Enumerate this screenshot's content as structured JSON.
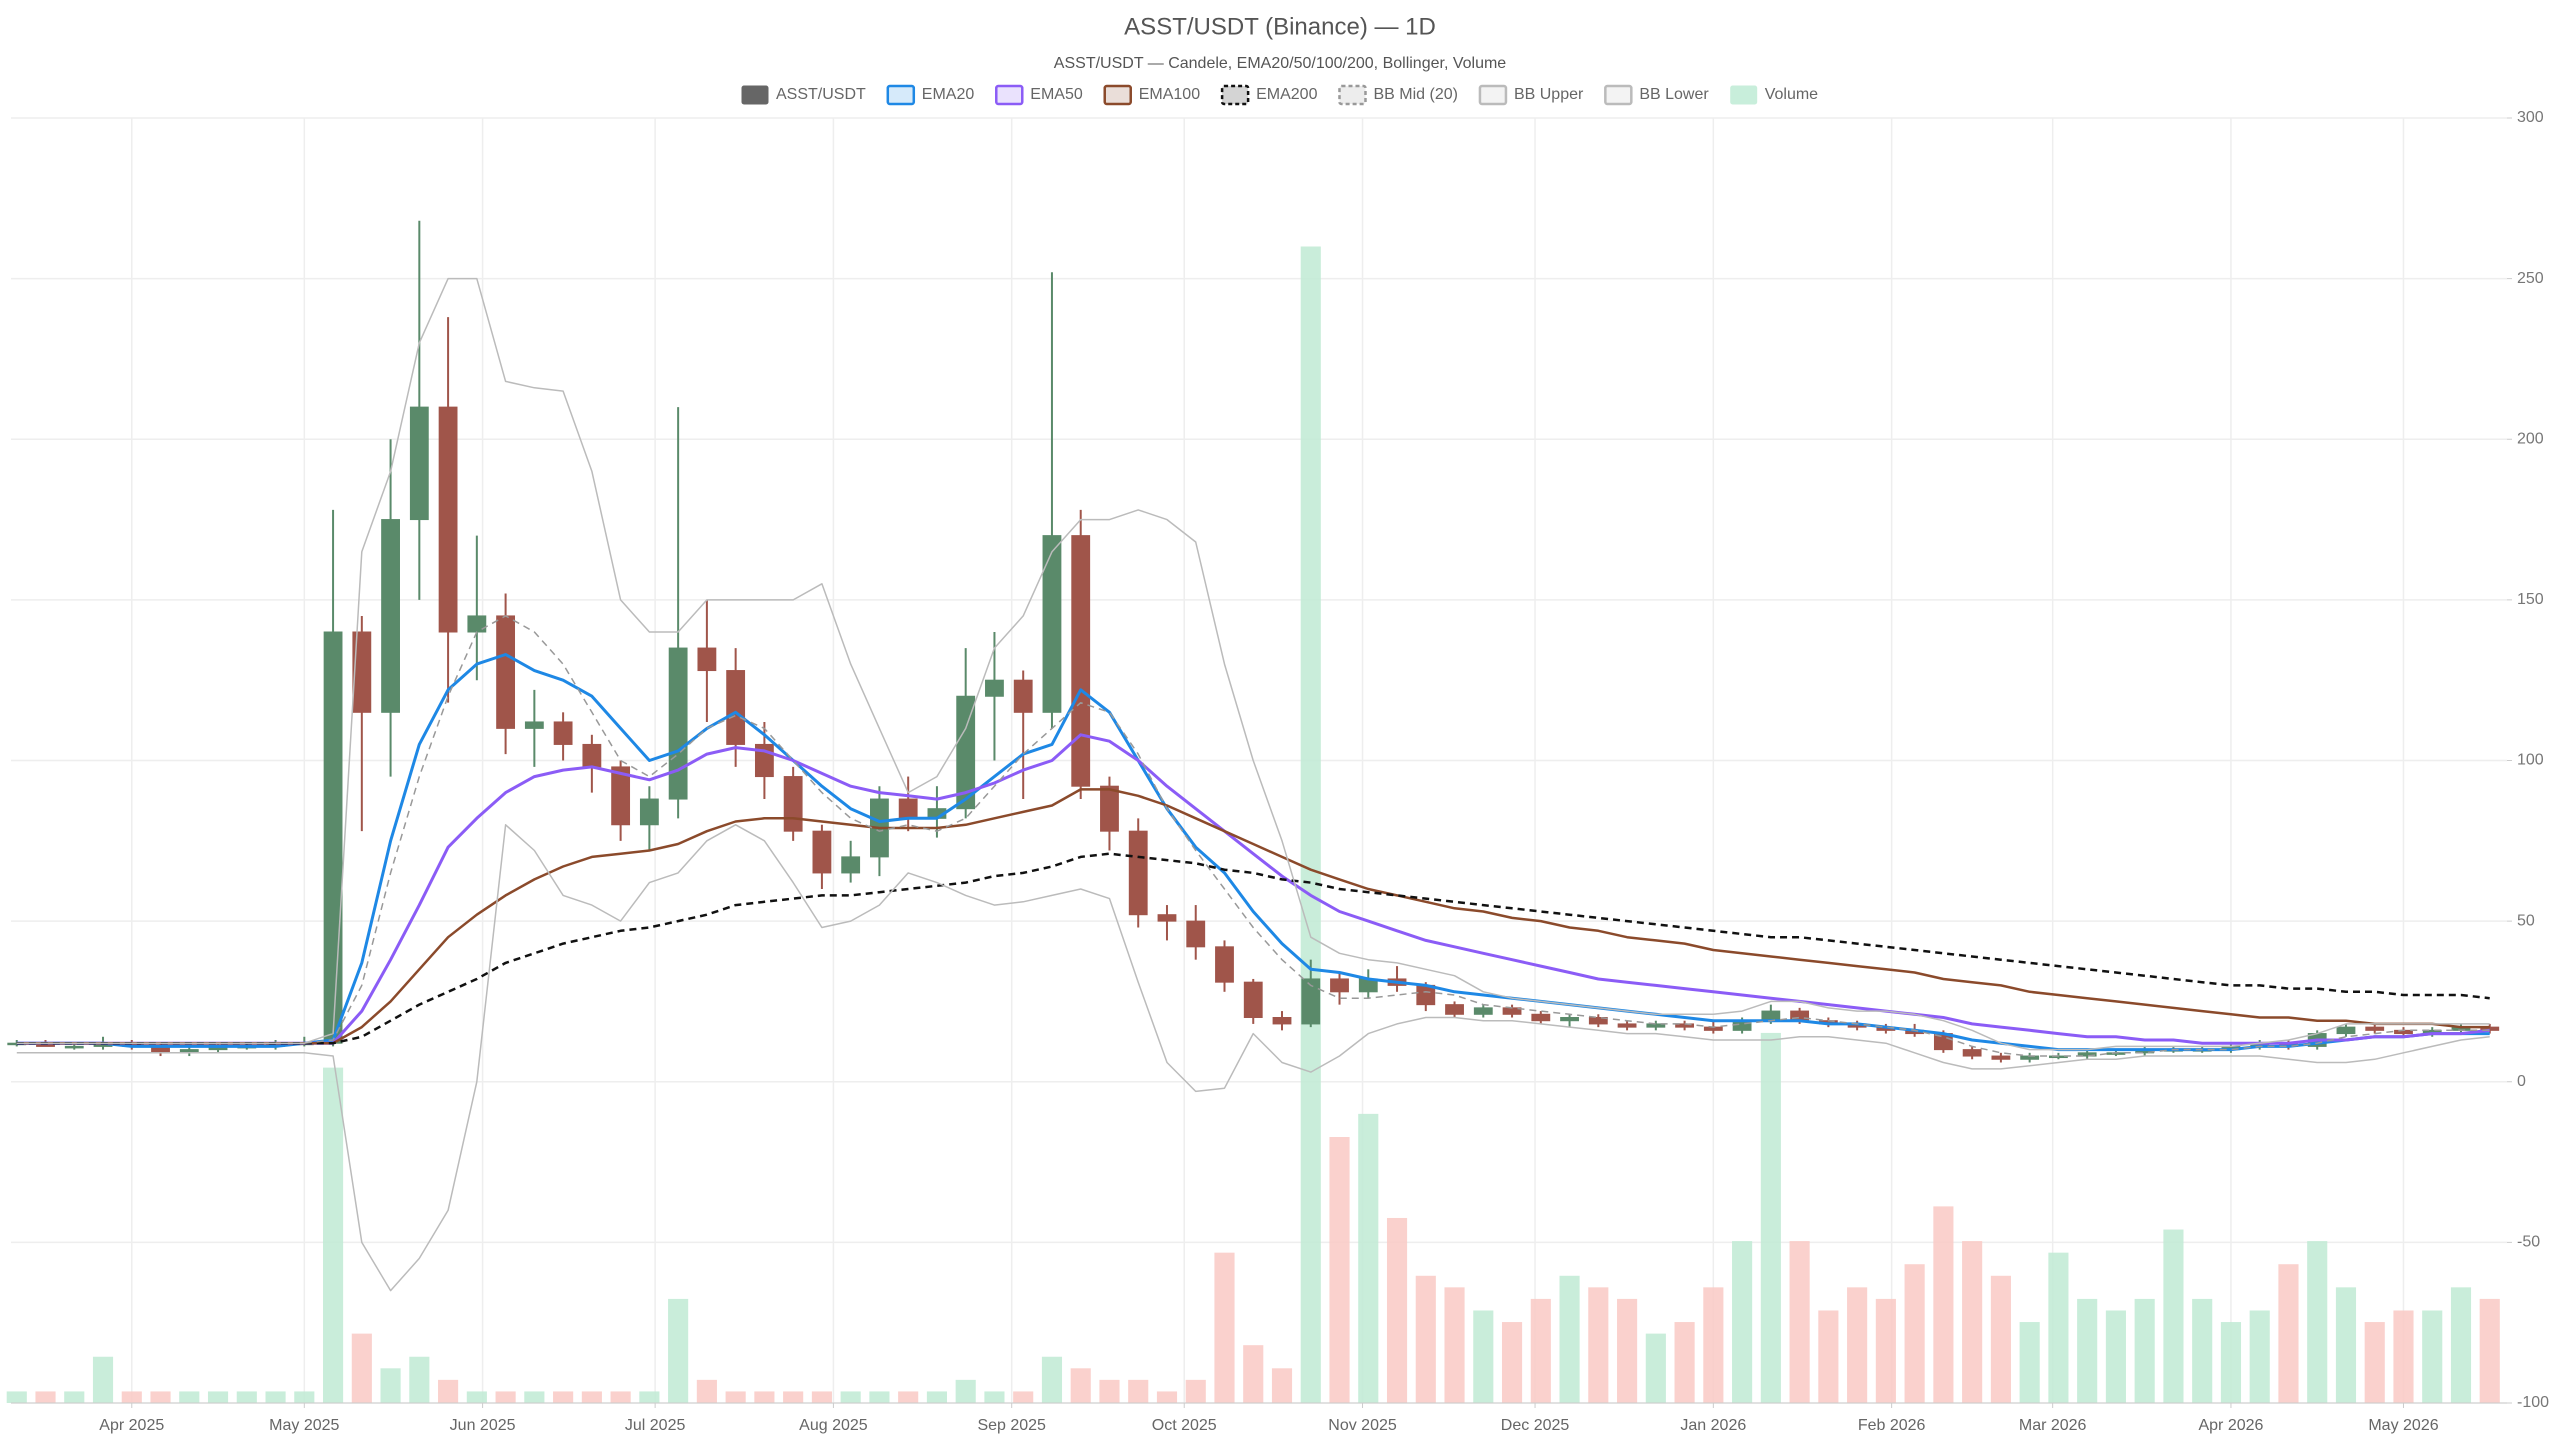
{
  "chart_data": {
    "type": "candlestick",
    "title": "ASST/USDT (Binance) — 1D",
    "subtitle": "ASST/USDT — Candele, EMA20/50/100/200, Bollinger, Volume",
    "legend": "top",
    "grid": true,
    "xlim": [
      "2025-03-11",
      "2026-05-19"
    ],
    "xticks": [
      {
        "value": "2025-04-01",
        "label": "Apr 2025"
      },
      {
        "value": "2025-05-01",
        "label": "May 2025"
      },
      {
        "value": "2025-06-01",
        "label": "Jun 2025"
      },
      {
        "value": "2025-07-01",
        "label": "Jul 2025"
      },
      {
        "value": "2025-08-01",
        "label": "Aug 2025"
      },
      {
        "value": "2025-09-01",
        "label": "Sep 2025"
      },
      {
        "value": "2025-10-01",
        "label": "Oct 2025"
      },
      {
        "value": "2025-11-01",
        "label": "Nov 2025"
      },
      {
        "value": "2025-12-01",
        "label": "Dec 2025"
      },
      {
        "value": "2026-01-01",
        "label": "Jan 2026"
      },
      {
        "value": "2026-02-01",
        "label": "Feb 2026"
      },
      {
        "value": "2026-03-01",
        "label": "Mar 2026"
      },
      {
        "value": "2026-04-01",
        "label": "Apr 2026"
      },
      {
        "value": "2026-05-01",
        "label": "May 2026"
      }
    ],
    "ylim": [
      -100,
      300
    ],
    "yticks": [
      -100,
      -50,
      0,
      50,
      100,
      150,
      200,
      250,
      300
    ],
    "x": [
      "2025-03-12",
      "2025-03-17",
      "2025-03-22",
      "2025-03-27",
      "2025-04-01",
      "2025-04-06",
      "2025-04-11",
      "2025-04-16",
      "2025-04-21",
      "2025-04-26",
      "2025-05-01",
      "2025-05-06",
      "2025-05-11",
      "2025-05-16",
      "2025-05-21",
      "2025-05-26",
      "2025-05-31",
      "2025-06-05",
      "2025-06-10",
      "2025-06-15",
      "2025-06-20",
      "2025-06-25",
      "2025-06-30",
      "2025-07-05",
      "2025-07-10",
      "2025-07-15",
      "2025-07-20",
      "2025-07-25",
      "2025-07-30",
      "2025-08-04",
      "2025-08-09",
      "2025-08-14",
      "2025-08-19",
      "2025-08-24",
      "2025-08-29",
      "2025-09-03",
      "2025-09-08",
      "2025-09-13",
      "2025-09-18",
      "2025-09-23",
      "2025-09-28",
      "2025-10-03",
      "2025-10-08",
      "2025-10-13",
      "2025-10-18",
      "2025-10-23",
      "2025-10-28",
      "2025-11-02",
      "2025-11-07",
      "2025-11-12",
      "2025-11-17",
      "2025-11-22",
      "2025-11-27",
      "2025-12-02",
      "2025-12-07",
      "2025-12-12",
      "2025-12-17",
      "2025-12-22",
      "2025-12-27",
      "2026-01-01",
      "2026-01-06",
      "2026-01-11",
      "2026-01-16",
      "2026-01-21",
      "2026-01-26",
      "2026-01-31",
      "2026-02-05",
      "2026-02-10",
      "2026-02-15",
      "2026-02-20",
      "2026-02-25",
      "2026-03-02",
      "2026-03-07",
      "2026-03-12",
      "2026-03-17",
      "2026-03-22",
      "2026-03-27",
      "2026-04-01",
      "2026-04-06",
      "2026-04-11",
      "2026-04-16",
      "2026-04-21",
      "2026-04-26",
      "2026-05-01",
      "2026-05-06",
      "2026-05-11",
      "2026-05-16"
    ],
    "series": [
      {
        "name": "ASST/USDT",
        "type": "candlestick",
        "color": "#666666",
        "up_color": "#5a8a6a",
        "down_color": "#a0554a",
        "open": [
          12,
          12,
          11,
          11,
          12,
          11,
          9,
          10,
          11,
          11,
          12,
          12,
          140,
          115,
          175,
          210,
          140,
          145,
          110,
          112,
          105,
          98,
          80,
          88,
          135,
          128,
          105,
          95,
          78,
          65,
          70,
          88,
          82,
          85,
          120,
          125,
          115,
          170,
          92,
          78,
          52,
          50,
          42,
          31,
          20,
          18,
          32,
          28,
          32,
          30,
          24,
          21,
          23,
          21,
          19,
          20,
          18,
          17,
          18,
          17,
          16,
          19,
          22,
          19,
          18,
          17,
          16,
          15,
          10,
          8,
          7,
          8,
          8,
          9,
          9,
          10,
          10,
          10,
          11,
          12,
          11,
          15,
          17,
          16,
          15,
          16,
          17
        ],
        "high": [
          13,
          13,
          12,
          14,
          13,
          12,
          11,
          12,
          12,
          13,
          14,
          178,
          145,
          200,
          268,
          238,
          170,
          152,
          122,
          115,
          108,
          100,
          92,
          210,
          150,
          135,
          112,
          98,
          80,
          75,
          92,
          95,
          92,
          135,
          140,
          128,
          252,
          178,
          95,
          82,
          55,
          55,
          44,
          32,
          22,
          38,
          34,
          35,
          36,
          31,
          25,
          24,
          24,
          22,
          21,
          21,
          19,
          19,
          19,
          19,
          20,
          24,
          23,
          20,
          19,
          18,
          18,
          16,
          11,
          9,
          9,
          9,
          10,
          10,
          11,
          11,
          11,
          12,
          13,
          13,
          16,
          18,
          18,
          17,
          17,
          18,
          18
        ],
        "low": [
          11,
          11,
          10,
          10,
          10,
          8,
          8,
          9,
          10,
          10,
          11,
          11,
          78,
          95,
          150,
          118,
          125,
          102,
          98,
          100,
          90,
          75,
          72,
          82,
          112,
          98,
          88,
          75,
          60,
          62,
          64,
          78,
          76,
          82,
          100,
          88,
          110,
          88,
          72,
          48,
          44,
          38,
          28,
          18,
          16,
          17,
          24,
          26,
          28,
          22,
          20,
          20,
          20,
          18,
          17,
          17,
          16,
          16,
          16,
          15,
          15,
          18,
          18,
          17,
          16,
          15,
          14,
          9,
          7,
          6,
          6,
          7,
          7,
          8,
          8,
          9,
          9,
          9,
          10,
          10,
          10,
          14,
          15,
          14,
          14,
          15,
          15
        ],
        "close": [
          12,
          11,
          11,
          12,
          11,
          9,
          10,
          11,
          11,
          12,
          12,
          140,
          115,
          175,
          210,
          140,
          145,
          110,
          112,
          105,
          98,
          80,
          88,
          135,
          128,
          105,
          95,
          78,
          65,
          70,
          88,
          82,
          85,
          120,
          125,
          115,
          170,
          92,
          78,
          52,
          50,
          42,
          31,
          20,
          18,
          32,
          28,
          32,
          30,
          24,
          21,
          23,
          21,
          19,
          20,
          18,
          17,
          18,
          17,
          16,
          19,
          22,
          19,
          18,
          17,
          16,
          15,
          10,
          8,
          7,
          8,
          8,
          9,
          9,
          10,
          10,
          10,
          11,
          12,
          11,
          15,
          17,
          16,
          15,
          16,
          17,
          16
        ]
      },
      {
        "name": "EMA20",
        "type": "line",
        "color": "#1e88e5",
        "line_width": 3,
        "values": [
          12,
          12,
          12,
          12,
          11,
          11,
          11,
          11,
          11,
          11,
          12,
          13,
          37,
          75,
          105,
          122,
          130,
          133,
          128,
          125,
          120,
          110,
          100,
          103,
          110,
          115,
          108,
          100,
          92,
          85,
          81,
          82,
          82,
          88,
          95,
          102,
          105,
          122,
          115,
          100,
          85,
          73,
          65,
          53,
          43,
          35,
          34,
          32,
          31,
          30,
          28,
          27,
          26,
          25,
          24,
          23,
          22,
          21,
          20,
          19,
          19,
          19,
          19,
          18,
          18,
          17,
          16,
          15,
          13,
          12,
          11,
          10,
          10,
          10,
          10,
          10,
          10,
          10,
          11,
          11,
          12,
          13,
          14,
          14,
          15,
          15,
          15
        ]
      },
      {
        "name": "EMA50",
        "type": "line",
        "color": "#8b5cf6",
        "line_width": 3,
        "values": [
          12,
          12,
          12,
          12,
          12,
          12,
          12,
          12,
          12,
          12,
          12,
          12,
          22,
          38,
          55,
          73,
          82,
          90,
          95,
          97,
          98,
          96,
          94,
          97,
          102,
          104,
          103,
          100,
          96,
          92,
          90,
          89,
          88,
          90,
          93,
          97,
          100,
          108,
          106,
          100,
          92,
          85,
          78,
          71,
          64,
          58,
          53,
          50,
          47,
          44,
          42,
          40,
          38,
          36,
          34,
          32,
          31,
          30,
          29,
          28,
          27,
          26,
          25,
          24,
          23,
          22,
          21,
          20,
          18,
          17,
          16,
          15,
          14,
          14,
          13,
          13,
          12,
          12,
          12,
          12,
          13,
          13,
          14,
          14,
          15,
          15,
          16
        ]
      },
      {
        "name": "EMA100",
        "type": "line",
        "color": "#8b4a2b",
        "line_width": 2.5,
        "values": [
          12,
          12,
          12,
          12,
          12,
          12,
          12,
          12,
          12,
          12,
          12,
          12,
          17,
          25,
          35,
          45,
          52,
          58,
          63,
          67,
          70,
          71,
          72,
          74,
          78,
          81,
          82,
          82,
          81,
          80,
          79,
          79,
          79,
          80,
          82,
          84,
          86,
          91,
          91,
          89,
          86,
          82,
          78,
          74,
          70,
          66,
          63,
          60,
          58,
          56,
          54,
          53,
          51,
          50,
          48,
          47,
          45,
          44,
          43,
          41,
          40,
          39,
          38,
          37,
          36,
          35,
          34,
          32,
          31,
          30,
          28,
          27,
          26,
          25,
          24,
          23,
          22,
          21,
          20,
          20,
          19,
          19,
          18,
          18,
          18,
          17,
          17
        ]
      },
      {
        "name": "EMA200",
        "type": "line",
        "color": "#111111",
        "line_width": 2.5,
        "dash": true,
        "values": [
          12,
          12,
          12,
          12,
          12,
          12,
          12,
          12,
          12,
          12,
          12,
          12,
          14,
          19,
          24,
          28,
          32,
          37,
          40,
          43,
          45,
          47,
          48,
          50,
          52,
          55,
          56,
          57,
          58,
          58,
          59,
          60,
          61,
          62,
          64,
          65,
          67,
          70,
          71,
          70,
          69,
          68,
          66,
          65,
          63,
          62,
          60,
          59,
          58,
          57,
          56,
          55,
          54,
          53,
          52,
          51,
          50,
          49,
          48,
          47,
          46,
          45,
          45,
          44,
          43,
          42,
          41,
          40,
          39,
          38,
          37,
          36,
          35,
          34,
          33,
          32,
          31,
          30,
          30,
          29,
          29,
          28,
          28,
          27,
          27,
          27,
          26
        ]
      },
      {
        "name": "BB Mid (20)",
        "type": "line",
        "color": "#999999",
        "line_width": 1.5,
        "dash": true,
        "values": [
          12,
          12,
          12,
          12,
          12,
          12,
          12,
          12,
          12,
          12,
          12,
          13,
          30,
          65,
          95,
          120,
          140,
          145,
          140,
          130,
          115,
          100,
          95,
          102,
          110,
          114,
          110,
          100,
          90,
          82,
          78,
          80,
          78,
          82,
          92,
          102,
          110,
          118,
          115,
          102,
          85,
          72,
          60,
          48,
          38,
          30,
          26,
          26,
          27,
          28,
          27,
          24,
          23,
          22,
          21,
          20,
          19,
          18,
          18,
          17,
          18,
          19,
          20,
          19,
          18,
          17,
          16,
          14,
          11,
          9,
          8,
          8,
          8,
          9,
          9,
          10,
          10,
          10,
          11,
          11,
          12,
          14,
          15,
          16,
          16,
          16,
          16
        ]
      },
      {
        "name": "BB Upper",
        "type": "line",
        "color": "#bbbbbb",
        "line_width": 1.5,
        "values": [
          12,
          12,
          12,
          12,
          12,
          12,
          12,
          12,
          12,
          12,
          12,
          15,
          165,
          190,
          230,
          250,
          250,
          218,
          216,
          215,
          190,
          150,
          140,
          140,
          150,
          150,
          150,
          150,
          155,
          130,
          110,
          90,
          95,
          110,
          135,
          145,
          165,
          175,
          175,
          178,
          175,
          168,
          130,
          100,
          75,
          45,
          40,
          38,
          37,
          35,
          33,
          28,
          26,
          25,
          24,
          23,
          22,
          21,
          21,
          21,
          22,
          25,
          25,
          23,
          22,
          22,
          21,
          19,
          16,
          12,
          10,
          10,
          10,
          11,
          11,
          11,
          11,
          11,
          12,
          13,
          15,
          18,
          18,
          18,
          18,
          18,
          18
        ]
      },
      {
        "name": "BB Lower",
        "type": "line",
        "color": "#bbbbbb",
        "line_width": 1.5,
        "values": [
          9,
          9,
          9,
          9,
          9,
          9,
          9,
          9,
          9,
          9,
          9,
          8,
          -50,
          -65,
          -55,
          -40,
          0,
          80,
          72,
          58,
          55,
          50,
          62,
          65,
          75,
          80,
          75,
          62,
          48,
          50,
          55,
          65,
          62,
          58,
          55,
          56,
          58,
          60,
          57,
          31,
          6,
          -3,
          -2,
          15,
          6,
          3,
          8,
          15,
          18,
          20,
          20,
          19,
          19,
          18,
          17,
          16,
          15,
          15,
          14,
          13,
          13,
          13,
          14,
          14,
          13,
          12,
          9,
          6,
          4,
          4,
          5,
          6,
          7,
          7,
          8,
          8,
          8,
          8,
          8,
          7,
          6,
          6,
          7,
          9,
          11,
          13,
          14
        ]
      },
      {
        "name": "Volume",
        "type": "bar",
        "color": "#c8eedb",
        "up_color": "#bfead3",
        "down_color": "#f9c9c4",
        "values": [
          1,
          1,
          1,
          4,
          1,
          1,
          1,
          1,
          1,
          1,
          1,
          29,
          6,
          3,
          4,
          2,
          1,
          1,
          1,
          1,
          1,
          1,
          1,
          9,
          2,
          1,
          1,
          1,
          1,
          1,
          1,
          1,
          1,
          2,
          1,
          1,
          4,
          3,
          2,
          2,
          1,
          2,
          13,
          5,
          3,
          100,
          23,
          25,
          16,
          11,
          10,
          8,
          7,
          9,
          11,
          10,
          9,
          6,
          7,
          10,
          14,
          32,
          14,
          8,
          10,
          9,
          12,
          17,
          14,
          11,
          7,
          13,
          9,
          8,
          9,
          15,
          9,
          7,
          8,
          12,
          14,
          10,
          7,
          8,
          8,
          10,
          9
        ]
      }
    ]
  }
}
